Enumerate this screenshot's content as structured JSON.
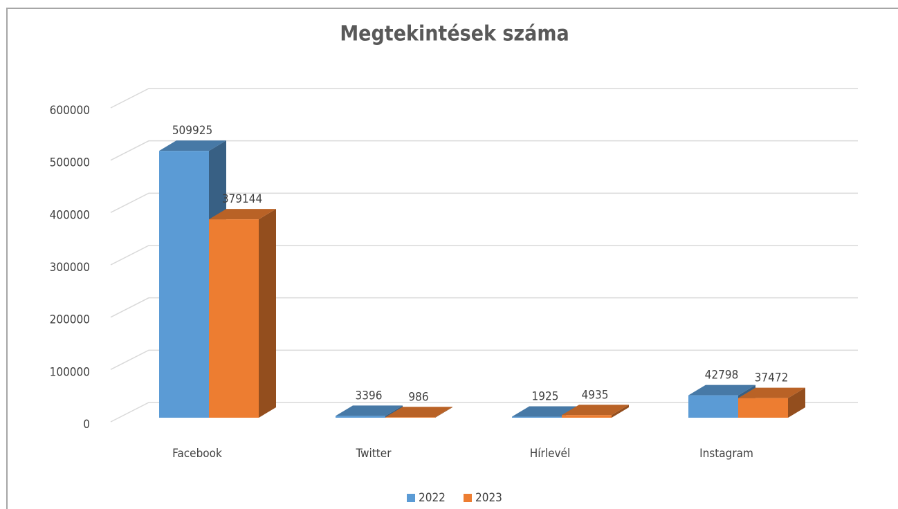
{
  "chart_data": {
    "type": "bar3d",
    "title": "Megtekintések száma",
    "categories": [
      "Facebook",
      "Twitter",
      "Hírlevél",
      "Instagram"
    ],
    "series": [
      {
        "name": "2022",
        "color": "#5b9bd5",
        "values": [
          509925,
          3396,
          1925,
          42798
        ]
      },
      {
        "name": "2023",
        "color": "#ed7d31",
        "values": [
          379144,
          986,
          4935,
          37472
        ]
      }
    ],
    "ylim": [
      0,
      600000
    ],
    "yticks": [
      0,
      100000,
      200000,
      300000,
      400000,
      500000,
      600000
    ],
    "grid": true,
    "legend": "bottom"
  }
}
